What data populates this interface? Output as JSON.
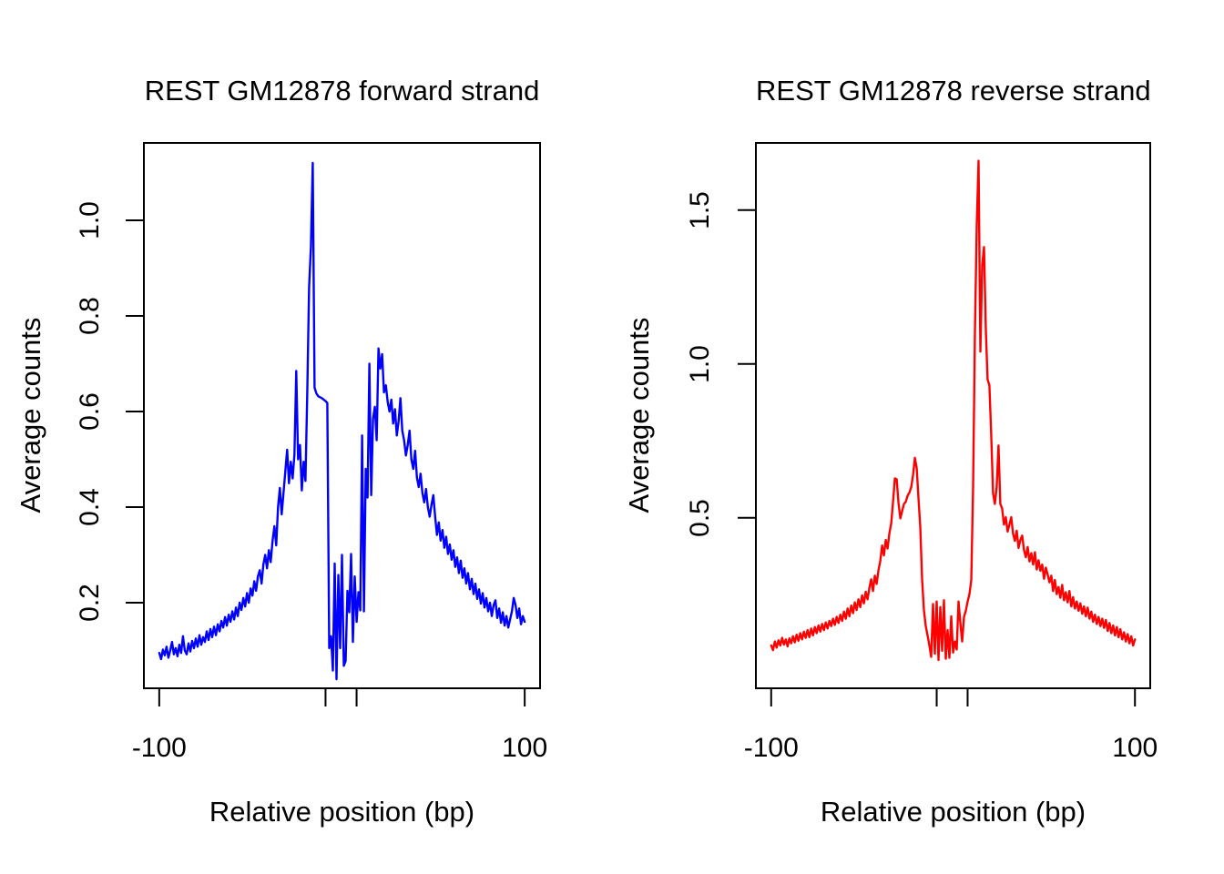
{
  "figure_background": "#FFFFFF",
  "chart_data": [
    {
      "type": "line",
      "title": "REST GM12878 forward strand",
      "xlabel": "Relative position (bp)",
      "ylabel": "Average counts",
      "series_name": "forward strand average coverage",
      "line_color": "#0000FF",
      "axis_color": "#000000",
      "legend": "none",
      "grid": false,
      "xlim": [
        -108.4,
        108.4
      ],
      "ylim": [
        0.021,
        1.162
      ],
      "x_ticks": [
        {
          "at": -100,
          "label": "-100"
        },
        {
          "at": -9,
          "label": ""
        },
        {
          "at": 8,
          "label": ""
        },
        {
          "at": 100,
          "label": "100"
        }
      ],
      "y_ticks": [
        {
          "at": 0.2,
          "label": "0.2"
        },
        {
          "at": 0.4,
          "label": "0.4"
        },
        {
          "at": 0.6,
          "label": "0.6"
        },
        {
          "at": 0.8,
          "label": "0.8"
        },
        {
          "at": 1.0,
          "label": "1.0"
        }
      ],
      "x_start": -100,
      "x_step": 1,
      "values": [
        0.095,
        0.082,
        0.102,
        0.09,
        0.108,
        0.085,
        0.1,
        0.118,
        0.092,
        0.105,
        0.088,
        0.112,
        0.095,
        0.13,
        0.1,
        0.092,
        0.115,
        0.098,
        0.12,
        0.105,
        0.125,
        0.108,
        0.132,
        0.112,
        0.128,
        0.118,
        0.14,
        0.122,
        0.145,
        0.128,
        0.15,
        0.132,
        0.155,
        0.14,
        0.162,
        0.148,
        0.17,
        0.152,
        0.175,
        0.16,
        0.182,
        0.165,
        0.19,
        0.172,
        0.2,
        0.185,
        0.21,
        0.192,
        0.22,
        0.2,
        0.23,
        0.215,
        0.245,
        0.225,
        0.255,
        0.268,
        0.24,
        0.28,
        0.3,
        0.272,
        0.31,
        0.285,
        0.33,
        0.36,
        0.32,
        0.4,
        0.44,
        0.385,
        0.43,
        0.475,
        0.52,
        0.45,
        0.495,
        0.46,
        0.51,
        0.685,
        0.5,
        0.53,
        0.435,
        0.495,
        0.455,
        0.64,
        0.86,
        0.945,
        1.12,
        0.65,
        0.638,
        0.632,
        0.63,
        0.628,
        0.625,
        0.622,
        0.618,
        0.105,
        0.13,
        0.058,
        0.282,
        0.04,
        0.258,
        0.105,
        0.3,
        0.068,
        0.078,
        0.225,
        0.18,
        0.302,
        0.118,
        0.255,
        0.16,
        0.222,
        0.184,
        0.55,
        0.182,
        0.48,
        0.42,
        0.7,
        0.425,
        0.585,
        0.61,
        0.54,
        0.732,
        0.69,
        0.72,
        0.64,
        0.655,
        0.62,
        0.6,
        0.625,
        0.575,
        0.605,
        0.55,
        0.58,
        0.628,
        0.56,
        0.54,
        0.508,
        0.53,
        0.56,
        0.5,
        0.48,
        0.518,
        0.462,
        0.442,
        0.47,
        0.43,
        0.41,
        0.438,
        0.4,
        0.38,
        0.405,
        0.425,
        0.38,
        0.342,
        0.368,
        0.33,
        0.352,
        0.315,
        0.338,
        0.302,
        0.322,
        0.29,
        0.31,
        0.275,
        0.295,
        0.262,
        0.288,
        0.252,
        0.272,
        0.24,
        0.262,
        0.228,
        0.25,
        0.218,
        0.24,
        0.208,
        0.228,
        0.198,
        0.22,
        0.19,
        0.21,
        0.182,
        0.2,
        0.172,
        0.195,
        0.205,
        0.168,
        0.188,
        0.158,
        0.18,
        0.152,
        0.172,
        0.148,
        0.165,
        0.182,
        0.21,
        0.195,
        0.168,
        0.188,
        0.155,
        0.172,
        0.16
      ]
    },
    {
      "type": "line",
      "title": "REST GM12878 reverse strand",
      "xlabel": "Relative position (bp)",
      "ylabel": "Average counts",
      "series_name": "reverse strand average coverage",
      "line_color": "#FF0000",
      "axis_color": "#000000",
      "legend": "none",
      "grid": false,
      "xlim": [
        -108.4,
        108.4
      ],
      "ylim": [
        -0.054,
        1.718
      ],
      "x_ticks": [
        {
          "at": -100,
          "label": "-100"
        },
        {
          "at": -9,
          "label": ""
        },
        {
          "at": 8,
          "label": ""
        },
        {
          "at": 100,
          "label": "100"
        }
      ],
      "y_ticks": [
        {
          "at": 0.5,
          "label": "0.5"
        },
        {
          "at": 1.0,
          "label": "1.0"
        },
        {
          "at": 1.5,
          "label": "1.5"
        }
      ],
      "x_start": -100,
      "x_step": 1,
      "values": [
        0.085,
        0.07,
        0.098,
        0.078,
        0.102,
        0.085,
        0.11,
        0.088,
        0.105,
        0.082,
        0.108,
        0.092,
        0.115,
        0.095,
        0.12,
        0.1,
        0.125,
        0.105,
        0.13,
        0.11,
        0.135,
        0.112,
        0.14,
        0.118,
        0.145,
        0.125,
        0.15,
        0.13,
        0.155,
        0.135,
        0.16,
        0.14,
        0.165,
        0.148,
        0.172,
        0.152,
        0.178,
        0.158,
        0.185,
        0.165,
        0.195,
        0.172,
        0.205,
        0.18,
        0.215,
        0.19,
        0.225,
        0.2,
        0.235,
        0.21,
        0.248,
        0.222,
        0.26,
        0.235,
        0.272,
        0.3,
        0.262,
        0.312,
        0.285,
        0.33,
        0.36,
        0.41,
        0.378,
        0.428,
        0.4,
        0.45,
        0.482,
        0.552,
        0.628,
        0.625,
        0.548,
        0.498,
        0.522,
        0.545,
        0.552,
        0.572,
        0.582,
        0.6,
        0.64,
        0.695,
        0.66,
        0.56,
        0.47,
        0.3,
        0.2,
        0.148,
        0.118,
        0.085,
        0.048,
        0.22,
        0.058,
        0.228,
        0.038,
        0.21,
        0.068,
        0.232,
        0.042,
        0.135,
        0.045,
        0.18,
        0.062,
        0.098,
        0.072,
        0.228,
        0.158,
        0.098,
        0.178,
        0.198,
        0.228,
        0.252,
        0.298,
        0.6,
        1.1,
        1.45,
        1.66,
        1.04,
        1.32,
        1.38,
        1.11,
        0.95,
        0.93,
        0.77,
        0.58,
        0.545,
        0.6,
        0.735,
        0.545,
        0.53,
        0.478,
        0.502,
        0.455,
        0.478,
        0.502,
        0.448,
        0.425,
        0.458,
        0.402,
        0.428,
        0.442,
        0.395,
        0.372,
        0.405,
        0.358,
        0.385,
        0.348,
        0.388,
        0.332,
        0.362,
        0.328,
        0.348,
        0.302,
        0.338,
        0.315,
        0.29,
        0.312,
        0.262,
        0.298,
        0.252,
        0.275,
        0.24,
        0.282,
        0.232,
        0.258,
        0.225,
        0.262,
        0.212,
        0.242,
        0.205,
        0.228,
        0.198,
        0.222,
        0.188,
        0.212,
        0.18,
        0.208,
        0.172,
        0.195,
        0.162,
        0.185,
        0.155,
        0.178,
        0.148,
        0.172,
        0.142,
        0.168,
        0.132,
        0.158,
        0.125,
        0.15,
        0.118,
        0.145,
        0.112,
        0.138,
        0.105,
        0.128,
        0.098,
        0.122,
        0.092,
        0.115,
        0.085,
        0.105
      ]
    }
  ]
}
